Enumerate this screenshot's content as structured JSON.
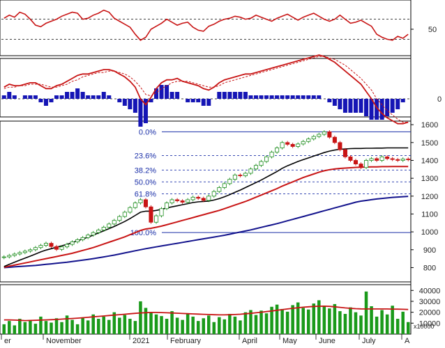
{
  "colors": {
    "background": "#ffffff",
    "rsi_line": "#c81414",
    "macd_line": "#c81414",
    "macd_signal": "#c81414",
    "histogram": "#1515b5",
    "candle_up": "#1a8c1a",
    "candle_down": "#c81414",
    "ma_black": "#000000",
    "ma_red": "#c81414",
    "ma_blue": "#12128c",
    "fib_line": "#1a2fa8",
    "volume_bar": "#1a9a1a",
    "volume_ma": "#c81414",
    "grid_dash": "#000000"
  },
  "chart_data": [
    {
      "type": "line",
      "panel": "rsi",
      "yticks": [
        "50"
      ],
      "reference_levels": [
        30,
        70
      ],
      "values": [
        72,
        78,
        74,
        84,
        80,
        70,
        58,
        55,
        62,
        66,
        70,
        76,
        80,
        84,
        82,
        70,
        72,
        78,
        82,
        88,
        84,
        72,
        66,
        60,
        54,
        40,
        28,
        34,
        50,
        56,
        62,
        70,
        64,
        58,
        62,
        64,
        54,
        48,
        46,
        56,
        60,
        66,
        70,
        72,
        76,
        74,
        70,
        72,
        78,
        74,
        70,
        66,
        72,
        76,
        80,
        74,
        68,
        74,
        78,
        82,
        76,
        70,
        66,
        70,
        78,
        70,
        62,
        64,
        68,
        62,
        56,
        40,
        34,
        30,
        28,
        36,
        32,
        40
      ]
    },
    {
      "type": "line",
      "panel": "macd",
      "yticks": [
        "0"
      ],
      "macd": [
        8,
        10,
        9,
        9,
        10,
        11,
        11,
        9,
        7,
        7,
        9,
        10,
        12,
        14,
        16,
        17,
        17,
        18,
        19,
        20,
        20,
        19,
        17,
        15,
        12,
        8,
        0,
        -4,
        1,
        7,
        11,
        13,
        13,
        14,
        12,
        11,
        10,
        9,
        7,
        6,
        8,
        11,
        13,
        14,
        15,
        16,
        17,
        17,
        18,
        19,
        20,
        21,
        22,
        23,
        24,
        25,
        26,
        27,
        28,
        29,
        30,
        29,
        27,
        25,
        22,
        19,
        16,
        13,
        10,
        5,
        0,
        -6,
        -10,
        -13,
        -15,
        -17,
        -17,
        -16
      ],
      "signal": [
        7,
        8,
        8,
        9,
        9,
        10,
        10,
        10,
        9,
        8,
        8,
        9,
        10,
        12,
        13,
        15,
        16,
        17,
        18,
        18,
        19,
        19,
        18,
        17,
        15,
        12,
        8,
        3,
        2,
        4,
        7,
        9,
        11,
        12,
        12,
        12,
        11,
        10,
        9,
        8,
        8,
        9,
        11,
        12,
        13,
        14,
        15,
        16,
        17,
        18,
        19,
        20,
        21,
        22,
        23,
        24,
        25,
        26,
        27,
        28,
        29,
        29,
        28,
        27,
        25,
        23,
        20,
        17,
        14,
        10,
        6,
        0,
        -4,
        -8,
        -11,
        -14,
        -16,
        -16
      ]
    },
    {
      "type": "line",
      "panel": "price",
      "yticks": [
        "1600",
        "1500",
        "1400",
        "1300",
        "1200",
        "1100",
        "1000",
        "900",
        "800"
      ],
      "ylim": [
        720,
        1620
      ],
      "fib_levels": [
        {
          "label": "0.0%",
          "value": 1560
        },
        {
          "label": "23.6%",
          "value": 1427
        },
        {
          "label": "38.2%",
          "value": 1346
        },
        {
          "label": "50.0%",
          "value": 1280
        },
        {
          "label": "61.8%",
          "value": 1213
        },
        {
          "label": "100.0%",
          "value": 996
        }
      ],
      "close": [
        860,
        868,
        876,
        884,
        892,
        900,
        912,
        924,
        936,
        918,
        902,
        916,
        930,
        944,
        956,
        968,
        982,
        996,
        1010,
        1026,
        1044,
        1064,
        1086,
        1110,
        1136,
        1162,
        1180,
        1140,
        1054,
        1090,
        1130,
        1162,
        1180,
        1174,
        1166,
        1180,
        1194,
        1188,
        1176,
        1200,
        1226,
        1248,
        1270,
        1294,
        1318,
        1314,
        1328,
        1352,
        1372,
        1394,
        1420,
        1446,
        1470,
        1500,
        1490,
        1478,
        1492,
        1506,
        1520,
        1534,
        1546,
        1560,
        1530,
        1500,
        1460,
        1420,
        1400,
        1380,
        1360,
        1400,
        1410,
        1400,
        1420,
        1410,
        1405,
        1400,
        1408,
        1404
      ],
      "ma_black": [
        806,
        818,
        830,
        842,
        853,
        864,
        876,
        888,
        898,
        906,
        914,
        922,
        930,
        940,
        950,
        960,
        970,
        982,
        994,
        1006,
        1018,
        1030,
        1044,
        1058,
        1074,
        1092,
        1110,
        1116,
        1116,
        1120,
        1126,
        1134,
        1140,
        1146,
        1152,
        1158,
        1164,
        1168,
        1170,
        1172,
        1178,
        1186,
        1196,
        1208,
        1222,
        1234,
        1248,
        1262,
        1276,
        1290,
        1306,
        1322,
        1338,
        1356,
        1370,
        1382,
        1394,
        1404,
        1414,
        1424,
        1434,
        1444,
        1452,
        1458,
        1462,
        1464,
        1466,
        1467,
        1467,
        1468,
        1468,
        1469,
        1469,
        1470,
        1470,
        1470,
        1470,
        1470
      ],
      "ma_red": [
        802,
        808,
        814,
        820,
        826,
        832,
        838,
        844,
        850,
        856,
        862,
        868,
        874,
        880,
        888,
        896,
        904,
        912,
        922,
        932,
        942,
        952,
        962,
        972,
        984,
        996,
        1008,
        1016,
        1020,
        1026,
        1032,
        1040,
        1048,
        1056,
        1064,
        1072,
        1080,
        1088,
        1096,
        1104,
        1112,
        1120,
        1130,
        1140,
        1150,
        1160,
        1170,
        1182,
        1194,
        1206,
        1218,
        1230,
        1242,
        1256,
        1268,
        1280,
        1292,
        1304,
        1314,
        1324,
        1334,
        1342,
        1348,
        1352,
        1355,
        1357,
        1359,
        1361,
        1362,
        1363,
        1364,
        1364,
        1365,
        1365,
        1366,
        1366,
        1366,
        1366
      ],
      "ma_blue": [
        800,
        802,
        804,
        806,
        808,
        810,
        812,
        815,
        818,
        821,
        824,
        827,
        830,
        834,
        838,
        842,
        846,
        850,
        855,
        860,
        865,
        870,
        876,
        882,
        888,
        894,
        900,
        906,
        911,
        916,
        921,
        926,
        931,
        936,
        941,
        946,
        951,
        956,
        961,
        966,
        971,
        976,
        981,
        987,
        993,
        999,
        1005,
        1011,
        1018,
        1025,
        1032,
        1039,
        1046,
        1054,
        1062,
        1070,
        1078,
        1086,
        1094,
        1102,
        1110,
        1118,
        1126,
        1134,
        1142,
        1150,
        1158,
        1166,
        1172,
        1176,
        1180,
        1184,
        1187,
        1190,
        1193,
        1195,
        1197,
        1199
      ]
    },
    {
      "type": "bar",
      "panel": "volume",
      "yticks": [
        "40000",
        "30000",
        "20000",
        "10000"
      ],
      "unit_label": "x10000",
      "ylim": [
        0,
        44000
      ],
      "values": [
        9000,
        12000,
        8000,
        14000,
        11000,
        13000,
        9500,
        16000,
        12000,
        10500,
        14500,
        11000,
        17000,
        13000,
        9000,
        15000,
        12500,
        18000,
        14000,
        16000,
        13000,
        20000,
        15000,
        17500,
        14000,
        12000,
        30000,
        24000,
        20000,
        18000,
        16500,
        14000,
        21000,
        15000,
        13000,
        19000,
        16000,
        12000,
        14500,
        17000,
        11000,
        15500,
        13500,
        18500,
        16000,
        12500,
        20000,
        22000,
        17500,
        21500,
        19000,
        25000,
        27000,
        23000,
        20500,
        26500,
        29000,
        24000,
        22500,
        28000,
        31000,
        26000,
        23500,
        27500,
        21000,
        18500,
        24500,
        20000,
        17000,
        39000,
        25500,
        16000,
        22000,
        18000,
        26000,
        14000,
        20500,
        11000
      ],
      "ma": [
        13000,
        13000,
        12800,
        12600,
        12400,
        12500,
        12600,
        12800,
        13000,
        13200,
        13400,
        13700,
        14000,
        14300,
        14600,
        15000,
        15400,
        15800,
        16200,
        16600,
        17000,
        17400,
        17800,
        18200,
        18600,
        19000,
        19400,
        19600,
        19800,
        19800,
        19700,
        19500,
        19300,
        19100,
        18900,
        18700,
        18500,
        18300,
        18100,
        17900,
        17700,
        17600,
        17600,
        17700,
        17900,
        18200,
        18600,
        19000,
        19500,
        20000,
        20600,
        21200,
        21800,
        22400,
        23000,
        23600,
        24100,
        24600,
        25000,
        25300,
        25500,
        25600,
        25400,
        25000,
        24500,
        24000,
        23600,
        23300,
        23100,
        23000,
        23000,
        23000,
        23000,
        23000,
        22900,
        22800,
        22700,
        22500
      ]
    }
  ],
  "x_axis": {
    "labels": [
      "er",
      "November",
      "2021",
      "February",
      "April",
      "May",
      "June",
      "July",
      "A"
    ]
  }
}
